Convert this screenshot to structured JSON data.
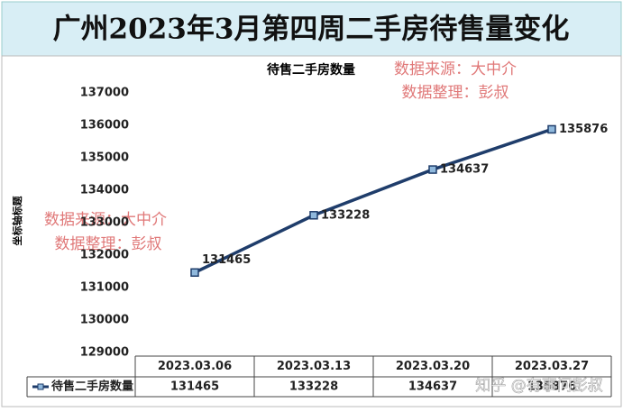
{
  "header": {
    "title": "广州2023年3月第四周二手房待售量变化"
  },
  "chart_data": {
    "type": "line",
    "title": "待售二手房数量",
    "y_label": "坐标轴标题",
    "categories": [
      "2023.03.06",
      "2023.03.13",
      "2023.03.20",
      "2023.03.27"
    ],
    "series": [
      {
        "name": "待售二手房数量",
        "color": "#1f3d6b",
        "values": [
          131465,
          133228,
          134637,
          135876
        ]
      }
    ],
    "ylim": [
      129000,
      137000
    ],
    "yticks": [
      129000,
      130000,
      131000,
      132000,
      133000,
      134000,
      135000,
      136000,
      137000
    ],
    "grid": false,
    "data_table": true
  },
  "watermarks": [
    "数据来源：大中介",
    "数据整理：彭叔",
    "数据来源：大中介",
    "数据整理：彭叔",
    "知乎 @有事问彭叔"
  ]
}
